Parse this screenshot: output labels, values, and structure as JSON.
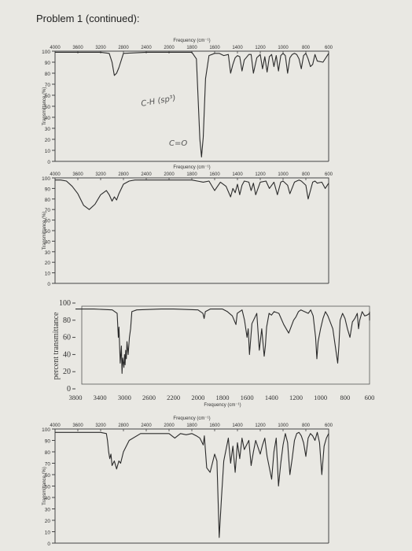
{
  "page": {
    "title": "Problem 1 (continued):"
  },
  "chart_data": [
    {
      "type": "line",
      "xlabel": "Frequency (cm⁻¹)",
      "ylabel": "Transmittance (%)",
      "xticks": [
        4000,
        3600,
        3200,
        2800,
        2400,
        2000,
        1800,
        1600,
        1400,
        1200,
        1000,
        800,
        600
      ],
      "yticks": [
        100,
        90,
        80,
        70,
        60,
        50,
        40,
        30,
        20,
        10,
        0
      ],
      "xlim": [
        4000,
        600
      ],
      "ylim": [
        0,
        100
      ],
      "annotations": [
        "C-H (sp³)",
        "C=O"
      ],
      "series": [
        {
          "x": [
            4000,
            3600,
            3200,
            3050,
            3000,
            2960,
            2920,
            2880,
            2800,
            2400,
            2200,
            2000,
            1800,
            1760,
            1730,
            1715,
            1700,
            1680,
            1650,
            1600,
            1560,
            1520,
            1480,
            1460,
            1440,
            1420,
            1400,
            1380,
            1360,
            1340,
            1300,
            1280,
            1260,
            1230,
            1200,
            1180,
            1160,
            1140,
            1120,
            1100,
            1080,
            1060,
            1040,
            1020,
            1000,
            980,
            960,
            940,
            920,
            900,
            880,
            860,
            840,
            820,
            800,
            780,
            760,
            740,
            720,
            700,
            650,
            600
          ],
          "y": [
            99,
            99,
            99,
            98,
            90,
            78,
            80,
            85,
            98,
            99,
            99,
            99,
            99,
            93,
            20,
            4,
            22,
            75,
            96,
            98,
            98,
            96,
            97,
            80,
            88,
            94,
            96,
            95,
            82,
            92,
            97,
            97,
            80,
            94,
            97,
            84,
            95,
            81,
            95,
            97,
            86,
            96,
            82,
            96,
            98,
            96,
            80,
            94,
            97,
            98,
            97,
            93,
            84,
            96,
            98,
            93,
            86,
            88,
            97,
            91,
            90,
            98
          ]
        }
      ]
    },
    {
      "type": "line",
      "xlabel": "Frequency (cm⁻¹)",
      "ylabel": "Transmittance (%)",
      "xticks": [
        4000,
        3600,
        3200,
        2800,
        2400,
        2000,
        1800,
        1600,
        1400,
        1200,
        1000,
        800,
        600
      ],
      "yticks": [
        100,
        90,
        80,
        70,
        60,
        50,
        40,
        30,
        20,
        10,
        0
      ],
      "xlim": [
        4000,
        600
      ],
      "ylim": [
        0,
        100
      ],
      "series": [
        {
          "x": [
            4000,
            3900,
            3800,
            3700,
            3600,
            3500,
            3400,
            3300,
            3200,
            3100,
            3050,
            3000,
            2960,
            2920,
            2880,
            2800,
            2700,
            2600,
            2500,
            2400,
            2200,
            2000,
            1800,
            1700,
            1650,
            1600,
            1550,
            1500,
            1460,
            1440,
            1420,
            1400,
            1380,
            1360,
            1340,
            1300,
            1280,
            1260,
            1240,
            1200,
            1150,
            1120,
            1080,
            1050,
            1020,
            1000,
            960,
            940,
            900,
            880,
            860,
            840,
            800,
            780,
            760,
            740,
            720,
            700,
            660,
            630,
            600
          ],
          "y": [
            98,
            98,
            97,
            92,
            85,
            74,
            70,
            75,
            84,
            88,
            84,
            78,
            82,
            79,
            85,
            94,
            97,
            98,
            98,
            98,
            98,
            98,
            98,
            96,
            97,
            88,
            96,
            92,
            82,
            90,
            86,
            94,
            84,
            93,
            97,
            96,
            88,
            95,
            84,
            96,
            97,
            90,
            96,
            84,
            96,
            97,
            93,
            85,
            96,
            97,
            98,
            97,
            93,
            80,
            88,
            96,
            97,
            95,
            96,
            90,
            95
          ]
        }
      ]
    },
    {
      "type": "line",
      "ylabel": "percent transmittance",
      "xlabel": "Frequency (cm⁻¹)",
      "xticks": [
        3800,
        3400,
        3000,
        2600,
        2200,
        2000,
        1800,
        1600,
        1400,
        1200,
        1000,
        800,
        600
      ],
      "yticks": [
        100,
        80,
        60,
        40,
        20,
        0
      ],
      "xlim": [
        3800,
        550
      ],
      "ylim": [
        0,
        100
      ],
      "series": [
        {
          "x": [
            3800,
            3500,
            3200,
            3120,
            3100,
            3090,
            3070,
            3050,
            3040,
            3030,
            3010,
            3000,
            2990,
            2980,
            2970,
            2960,
            2940,
            2920,
            2900,
            2880,
            2800,
            2400,
            2200,
            2000,
            1960,
            1950,
            1940,
            1900,
            1800,
            1760,
            1720,
            1690,
            1680,
            1640,
            1620,
            1600,
            1590,
            1580,
            1560,
            1520,
            1500,
            1480,
            1460,
            1450,
            1440,
            1420,
            1400,
            1380,
            1340,
            1300,
            1280,
            1260,
            1220,
            1200,
            1180,
            1160,
            1100,
            1080,
            1060,
            1040,
            1030,
            1020,
            1000,
            980,
            960,
            940,
            900,
            880,
            860,
            850,
            840,
            820,
            800,
            780,
            760,
            740,
            720,
            700,
            690,
            680,
            660,
            640,
            620,
            600,
            580,
            560
          ],
          "y": [
            93,
            93,
            92,
            88,
            60,
            72,
            30,
            50,
            18,
            36,
            25,
            40,
            28,
            45,
            35,
            55,
            40,
            60,
            70,
            90,
            92,
            93,
            93,
            92,
            88,
            82,
            90,
            93,
            93,
            90,
            85,
            75,
            88,
            92,
            80,
            60,
            70,
            40,
            76,
            88,
            45,
            70,
            38,
            50,
            72,
            88,
            86,
            90,
            88,
            75,
            70,
            65,
            80,
            84,
            90,
            92,
            88,
            92,
            85,
            60,
            35,
            55,
            70,
            82,
            90,
            85,
            70,
            50,
            30,
            50,
            80,
            88,
            82,
            70,
            60,
            78,
            82,
            88,
            70,
            80,
            90,
            85,
            86,
            88,
            80,
            90
          ]
        }
      ]
    },
    {
      "type": "line",
      "xlabel": "Frequency (cm⁻¹)",
      "ylabel": "Transmittance (%)",
      "xticks": [
        4000,
        3600,
        3200,
        2800,
        2400,
        2000,
        1800,
        1600,
        1400,
        1200,
        1000,
        800,
        600
      ],
      "yticks": [
        100,
        90,
        80,
        70,
        60,
        50,
        40,
        30,
        20,
        10,
        0
      ],
      "xlim": [
        4000,
        600
      ],
      "ylim": [
        0,
        100
      ],
      "series": [
        {
          "x": [
            4000,
            3600,
            3200,
            3100,
            3080,
            3060,
            3040,
            3020,
            3000,
            2960,
            2920,
            2880,
            2850,
            2800,
            2700,
            2500,
            2400,
            2200,
            2000,
            1950,
            1900,
            1850,
            1800,
            1760,
            1730,
            1700,
            1690,
            1670,
            1640,
            1600,
            1580,
            1560,
            1540,
            1520,
            1500,
            1480,
            1460,
            1440,
            1420,
            1400,
            1380,
            1360,
            1340,
            1300,
            1280,
            1260,
            1240,
            1200,
            1180,
            1160,
            1140,
            1100,
            1080,
            1060,
            1040,
            1020,
            1000,
            980,
            960,
            940,
            920,
            900,
            880,
            860,
            840,
            820,
            800,
            780,
            760,
            740,
            720,
            700,
            680,
            660,
            640,
            620,
            600
          ],
          "y": [
            97,
            97,
            97,
            96,
            90,
            80,
            74,
            78,
            68,
            72,
            65,
            72,
            70,
            80,
            90,
            96,
            96,
            96,
            96,
            92,
            96,
            95,
            96,
            94,
            92,
            86,
            94,
            66,
            62,
            78,
            72,
            5,
            40,
            72,
            82,
            92,
            70,
            85,
            62,
            88,
            74,
            92,
            82,
            90,
            68,
            80,
            90,
            78,
            86,
            92,
            76,
            56,
            80,
            92,
            50,
            70,
            86,
            96,
            88,
            60,
            74,
            90,
            96,
            97,
            94,
            88,
            76,
            92,
            96,
            94,
            90,
            97,
            88,
            60,
            85,
            92,
            96
          ]
        }
      ]
    }
  ]
}
